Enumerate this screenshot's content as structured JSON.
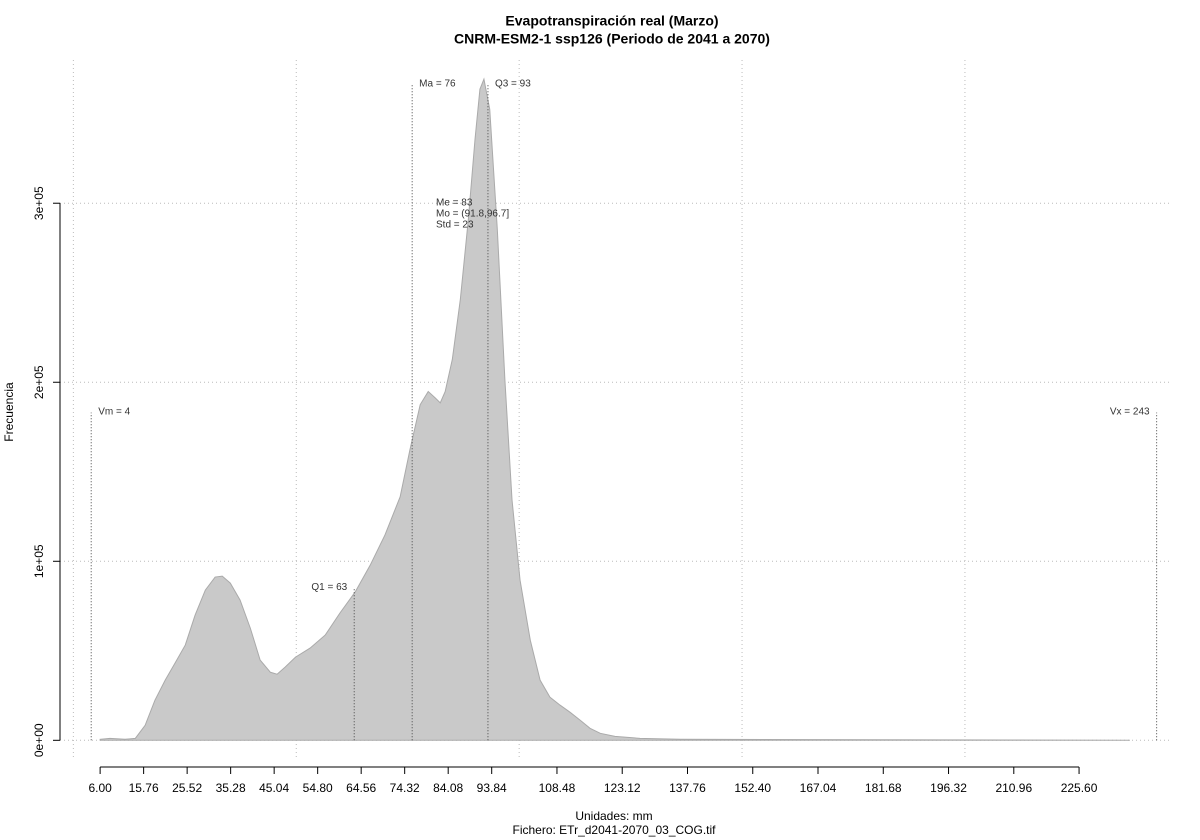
{
  "chart_data": {
    "type": "area",
    "title": "Evapotranspiración real (Marzo)",
    "subtitle": "CNRM-ESM2-1 ssp126 (Periodo de 2041 a 2070)",
    "x_label": "Unidades: mm",
    "y_label": "Frecuencia",
    "caption": "Fichero: ETr_d2041-2070_03_COG.tif",
    "color": "#c9c9c9",
    "x": [
      6.0,
      8.2,
      11.6,
      13.9,
      16.1,
      18.3,
      20.6,
      22.8,
      25.1,
      27.3,
      29.6,
      31.8,
      33.4,
      35.2,
      37.4,
      39.7,
      41.9,
      44.2,
      45.7,
      47.5,
      49.8,
      53.1,
      56.5,
      59.8,
      63.2,
      66.6,
      69.9,
      73.3,
      75.5,
      77.8,
      79.6,
      81.1,
      82.3,
      83.4,
      85.0,
      86.8,
      88.6,
      90.1,
      91.2,
      92.1,
      93.4,
      95.1,
      96.8,
      98.4,
      100.2,
      102.5,
      104.7,
      106.9,
      109.2,
      111.4,
      113.7,
      115.9,
      118.2,
      121.5,
      127.1,
      136.1,
      237.0
    ],
    "values": [
      560,
      1100,
      560,
      1100,
      8400,
      22400,
      33600,
      43100,
      53200,
      69900,
      83900,
      91200,
      91700,
      87800,
      78300,
      62600,
      44800,
      38000,
      36900,
      40900,
      46400,
      51500,
      58800,
      71100,
      82800,
      97900,
      114700,
      136000,
      162300,
      187500,
      194800,
      191400,
      188500,
      194800,
      212700,
      246200,
      291000,
      335800,
      363700,
      369300,
      352500,
      285400,
      201400,
      134300,
      89500,
      55900,
      33600,
      24100,
      19600,
      15700,
      11200,
      6700,
      3900,
      2200,
      1100,
      560,
      0
    ],
    "xlim": [
      -3,
      246
    ],
    "ylim": [
      -11000,
      380000
    ],
    "xticks": [
      {
        "value": 6,
        "label": "6.00"
      },
      15.76,
      25.52,
      35.28,
      45.04,
      {
        "value": 54.8,
        "label": "54.80"
      },
      64.56,
      74.32,
      84.08,
      93.84,
      108.48,
      123.12,
      137.76,
      {
        "value": 152.4,
        "label": "152.40"
      },
      167.04,
      181.68,
      196.32,
      210.96,
      {
        "value": 225.6,
        "label": "225.60"
      }
    ],
    "yticks": [
      {
        "value": 0,
        "label": "0e+00"
      },
      {
        "value": 100000,
        "label": "1e+05"
      },
      {
        "value": 200000,
        "label": "2e+05"
      },
      {
        "value": 300000,
        "label": "3e+05"
      }
    ],
    "xgrid": [
      0,
      50,
      100,
      150,
      200
    ],
    "grid": true,
    "annotations": [
      {
        "label": "Vm = 4",
        "x": 4,
        "y": 183000
      },
      {
        "label": "Q1 = 63",
        "x": 63,
        "y": 85000
      },
      {
        "label": "Ma = 76",
        "x": 76,
        "y": 366000
      },
      {
        "label": "Q3 = 93",
        "x": 93,
        "y": 366000
      },
      {
        "label": "Vx = 243",
        "x": 243,
        "y": 183000
      }
    ],
    "stats": [
      "Me = 83",
      "Mo = (91.8,96.7]",
      "Std = 23"
    ]
  }
}
